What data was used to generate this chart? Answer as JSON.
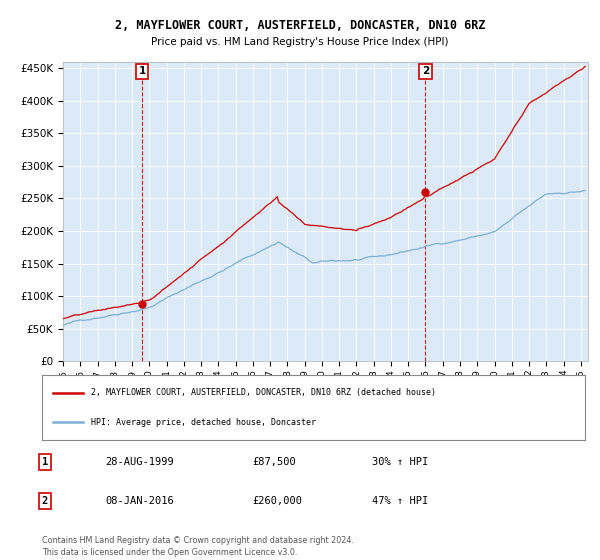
{
  "title": "2, MAYFLOWER COURT, AUSTERFIELD, DONCASTER, DN10 6RZ",
  "subtitle": "Price paid vs. HM Land Registry's House Price Index (HPI)",
  "bg_color": "#dce9f7",
  "red_line_color": "#cc0000",
  "blue_line_color": "#7bafd4",
  "sale1_label": "1",
  "sale2_label": "2",
  "yticks": [
    0,
    50000,
    100000,
    150000,
    200000,
    250000,
    300000,
    350000,
    400000,
    450000
  ],
  "ylim": [
    0,
    460000
  ],
  "legend_label_red": "2, MAYFLOWER COURT, AUSTERFIELD, DONCASTER, DN10 6RZ (detached house)",
  "legend_label_blue": "HPI: Average price, detached house, Doncaster",
  "table_row1": [
    "1",
    "28-AUG-1999",
    "£87,500",
    "30% ↑ HPI"
  ],
  "table_row2": [
    "2",
    "08-JAN-2016",
    "£260,000",
    "47% ↑ HPI"
  ],
  "footnote": "Contains HM Land Registry data © Crown copyright and database right 2024.\nThis data is licensed under the Open Government Licence v3.0."
}
